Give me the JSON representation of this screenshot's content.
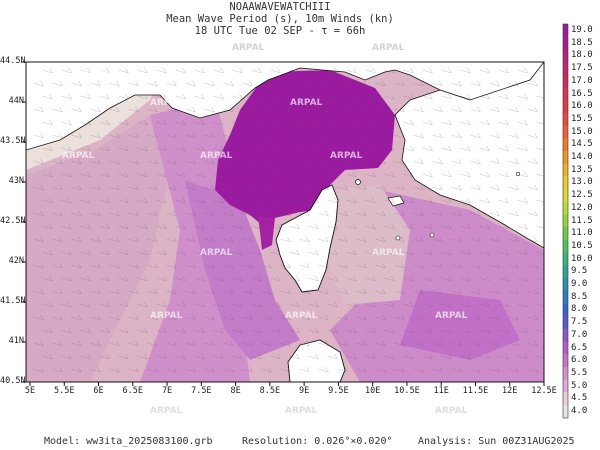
{
  "header": {
    "line1": "NOAAWAVEWATCHIII",
    "line2": "Mean Wave Period (s), 10m Winds (kn)",
    "line3": "18 UTC Tue 02 SEP  -  τ = 66h"
  },
  "footer": {
    "model": "Model: ww3ita_2025083100.grb",
    "resolution": "Resolution: 0.026°×0.020°",
    "analysis": "Analysis: Sun 00Z31AUG2025"
  },
  "watermark": "ARPAL",
  "map": {
    "lon_range": [
      5,
      12.5
    ],
    "lat_range": [
      40.5,
      44.5
    ],
    "x_ticks": [
      "5E",
      "5.5E",
      "6E",
      "6.5E",
      "7E",
      "7.5E",
      "8E",
      "8.5E",
      "9E",
      "9.5E",
      "10E",
      "10.5E",
      "11E",
      "11.5E",
      "12E",
      "12.5E"
    ],
    "y_ticks": [
      "44.5N",
      "44N",
      "43.5N",
      "43N",
      "42.5N",
      "42N",
      "41.5N",
      "41N",
      "40.5N"
    ]
  },
  "colorbar": {
    "labels": [
      "19.0",
      "18.5",
      "18.0",
      "17.5",
      "17.0",
      "16.5",
      "16.0",
      "15.5",
      "15.0",
      "14.5",
      "14.0",
      "13.5",
      "13.0",
      "12.5",
      "12.0",
      "11.5",
      "11.0",
      "10.5",
      "10.0",
      "9.5",
      "9.0",
      "8.5",
      "8.0",
      "7.5",
      "7.0",
      "6.5",
      "6.0",
      "5.5",
      "5.0",
      "4.5",
      "4.0"
    ],
    "colors": [
      "#9a1aa0",
      "#a51d8f",
      "#b3237f",
      "#c22670",
      "#d02a62",
      "#dc3257",
      "#e33a4c",
      "#ea4a3e",
      "#ee6034",
      "#f07a2b",
      "#f09627",
      "#eeb128",
      "#e9cb2c",
      "#d9db33",
      "#b9dc36",
      "#93d43a",
      "#6ecb44",
      "#4fc05a",
      "#3ab27a",
      "#2ea497",
      "#2a92ae",
      "#2c7dbd",
      "#3467c7",
      "#5a5acb",
      "#8a5ac9",
      "#b35fc5",
      "#c874c6",
      "#d58fcd",
      "#e0aad5",
      "#ead0d3",
      "#e9e4de"
    ]
  }
}
